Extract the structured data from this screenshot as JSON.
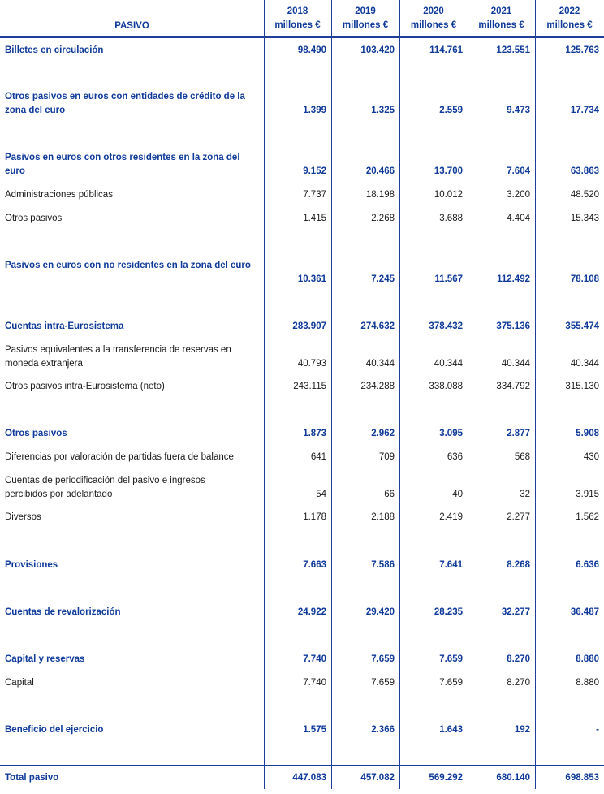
{
  "header": {
    "title": "PASIVO",
    "unit": "millones €",
    "years": [
      "2018",
      "2019",
      "2020",
      "2021",
      "2022"
    ]
  },
  "rows": [
    {
      "label": "Billetes en circulación",
      "bold": true,
      "values": [
        "98.490",
        "103.420",
        "114.761",
        "123.551",
        "125.763"
      ]
    },
    {
      "label": "Otros pasivos en euros con entidades de crédito de la zona del euro",
      "bold": true,
      "values": [
        "1.399",
        "1.325",
        "2.559",
        "9.473",
        "17.734"
      ]
    },
    {
      "label": "Pasivos en euros con otros residentes en la zona del euro",
      "bold": true,
      "values": [
        "9.152",
        "20.466",
        "13.700",
        "7.604",
        "63.863"
      ]
    },
    {
      "label": "Administraciones públicas",
      "bold": false,
      "values": [
        "7.737",
        "18.198",
        "10.012",
        "3.200",
        "48.520"
      ]
    },
    {
      "label": "Otros pasivos",
      "bold": false,
      "values": [
        "1.415",
        "2.268",
        "3.688",
        "4.404",
        "15.343"
      ]
    },
    {
      "label": "Pasivos en euros con no residentes en la zona del euro",
      "bold": true,
      "values": [
        "10.361",
        "7.245",
        "11.567",
        "112.492",
        "78.108"
      ]
    },
    {
      "label": "Cuentas intra-Eurosistema",
      "bold": true,
      "values": [
        "283.907",
        "274.632",
        "378.432",
        "375.136",
        "355.474"
      ]
    },
    {
      "label": "Pasivos equivalentes a la transferencia de reservas en moneda extranjera",
      "bold": false,
      "values": [
        "40.793",
        "40.344",
        "40.344",
        "40.344",
        "40.344"
      ]
    },
    {
      "label": "Otros pasivos intra-Eurosistema (neto)",
      "bold": false,
      "values": [
        "243.115",
        "234.288",
        "338.088",
        "334.792",
        "315.130"
      ]
    },
    {
      "label": "Otros pasivos",
      "bold": true,
      "values": [
        "1.873",
        "2.962",
        "3.095",
        "2.877",
        "5.908"
      ]
    },
    {
      "label": "Diferencias por valoración de partidas fuera de balance",
      "bold": false,
      "values": [
        "641",
        "709",
        "636",
        "568",
        "430"
      ]
    },
    {
      "label": "Cuentas de periodificación del pasivo e ingresos percibidos por adelantado",
      "bold": false,
      "values": [
        "54",
        "66",
        "40",
        "32",
        "3.915"
      ]
    },
    {
      "label": "Diversos",
      "bold": false,
      "values": [
        "1.178",
        "2.188",
        "2.419",
        "2.277",
        "1.562"
      ]
    },
    {
      "label": "Provisiones",
      "bold": true,
      "values": [
        "7.663",
        "7.586",
        "7.641",
        "8.268",
        "6.636"
      ]
    },
    {
      "label": "Cuentas de revalorización",
      "bold": true,
      "values": [
        "24.922",
        "29.420",
        "28.235",
        "32.277",
        "36.487"
      ]
    },
    {
      "label": "Capital y reservas",
      "bold": true,
      "values": [
        "7.740",
        "7.659",
        "7.659",
        "8.270",
        "8.880"
      ]
    },
    {
      "label": "Capital",
      "bold": false,
      "values": [
        "7.740",
        "7.659",
        "7.659",
        "8.270",
        "8.880"
      ]
    },
    {
      "label": "Beneficio del ejercicio",
      "bold": true,
      "values": [
        "1.575",
        "2.366",
        "1.643",
        "192",
        "-"
      ]
    },
    {
      "label": "Total pasivo",
      "bold": true,
      "values": [
        "447.083",
        "457.082",
        "569.292",
        "680.140",
        "698.853"
      ]
    }
  ]
}
